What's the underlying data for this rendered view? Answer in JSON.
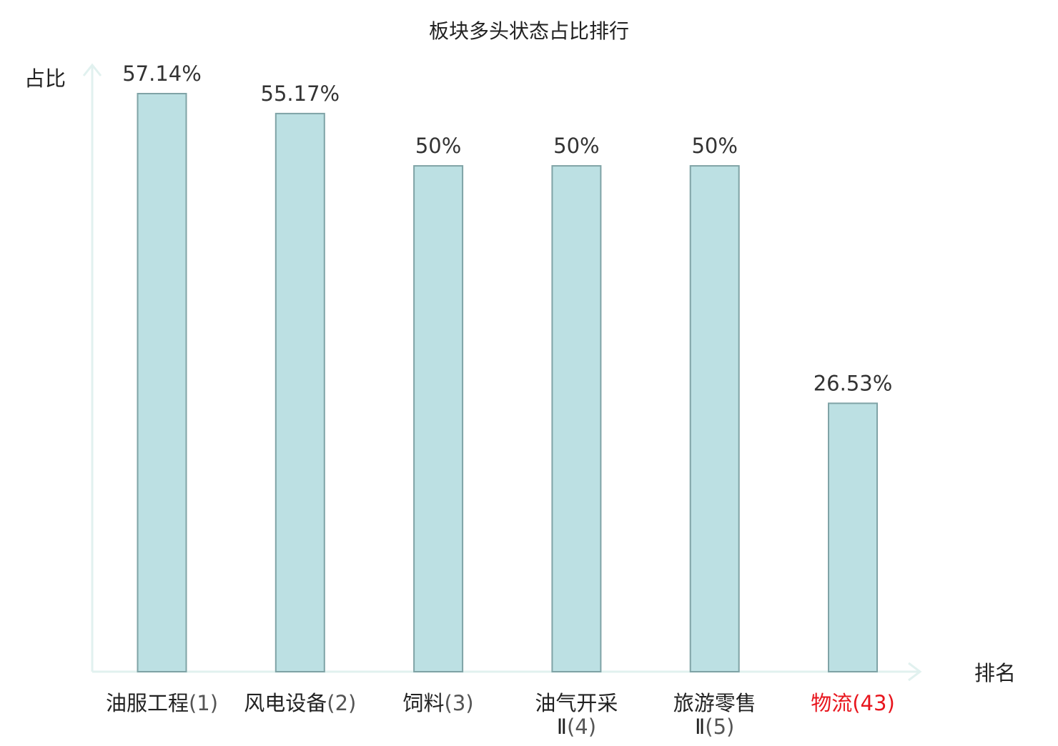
{
  "chart_data": {
    "type": "bar",
    "title": "板块多头状态占比排行",
    "ylabel": "占比",
    "xlabel": "排名",
    "ylim": [
      0,
      60
    ],
    "grid": false,
    "categories": [
      {
        "name_lines": [
          "油服工程"
        ],
        "rank": "(1)",
        "highlight": false
      },
      {
        "name_lines": [
          "风电设备"
        ],
        "rank": "(2)",
        "highlight": false
      },
      {
        "name_lines": [
          "饲料"
        ],
        "rank": "(3)",
        "highlight": false
      },
      {
        "name_lines": [
          "油气开采",
          "Ⅱ"
        ],
        "rank": "(4)",
        "highlight": false
      },
      {
        "name_lines": [
          "旅游零售",
          "Ⅱ"
        ],
        "rank": "(5)",
        "highlight": false
      },
      {
        "name_lines": [
          "物流"
        ],
        "rank": "(43)",
        "highlight": true
      }
    ],
    "values": [
      57.14,
      55.17,
      50,
      50,
      50,
      26.53
    ],
    "value_labels": [
      "57.14%",
      "55.17%",
      "50%",
      "50%",
      "50%",
      "26.53%"
    ]
  },
  "colors": {
    "bar_fill": "#bce0e3",
    "bar_stroke": "#7fa3a6",
    "axis": "#e1f1ef",
    "text": "#333333",
    "label_text": "#222222",
    "rank_text": "#555555",
    "highlight": "#e8161e"
  }
}
